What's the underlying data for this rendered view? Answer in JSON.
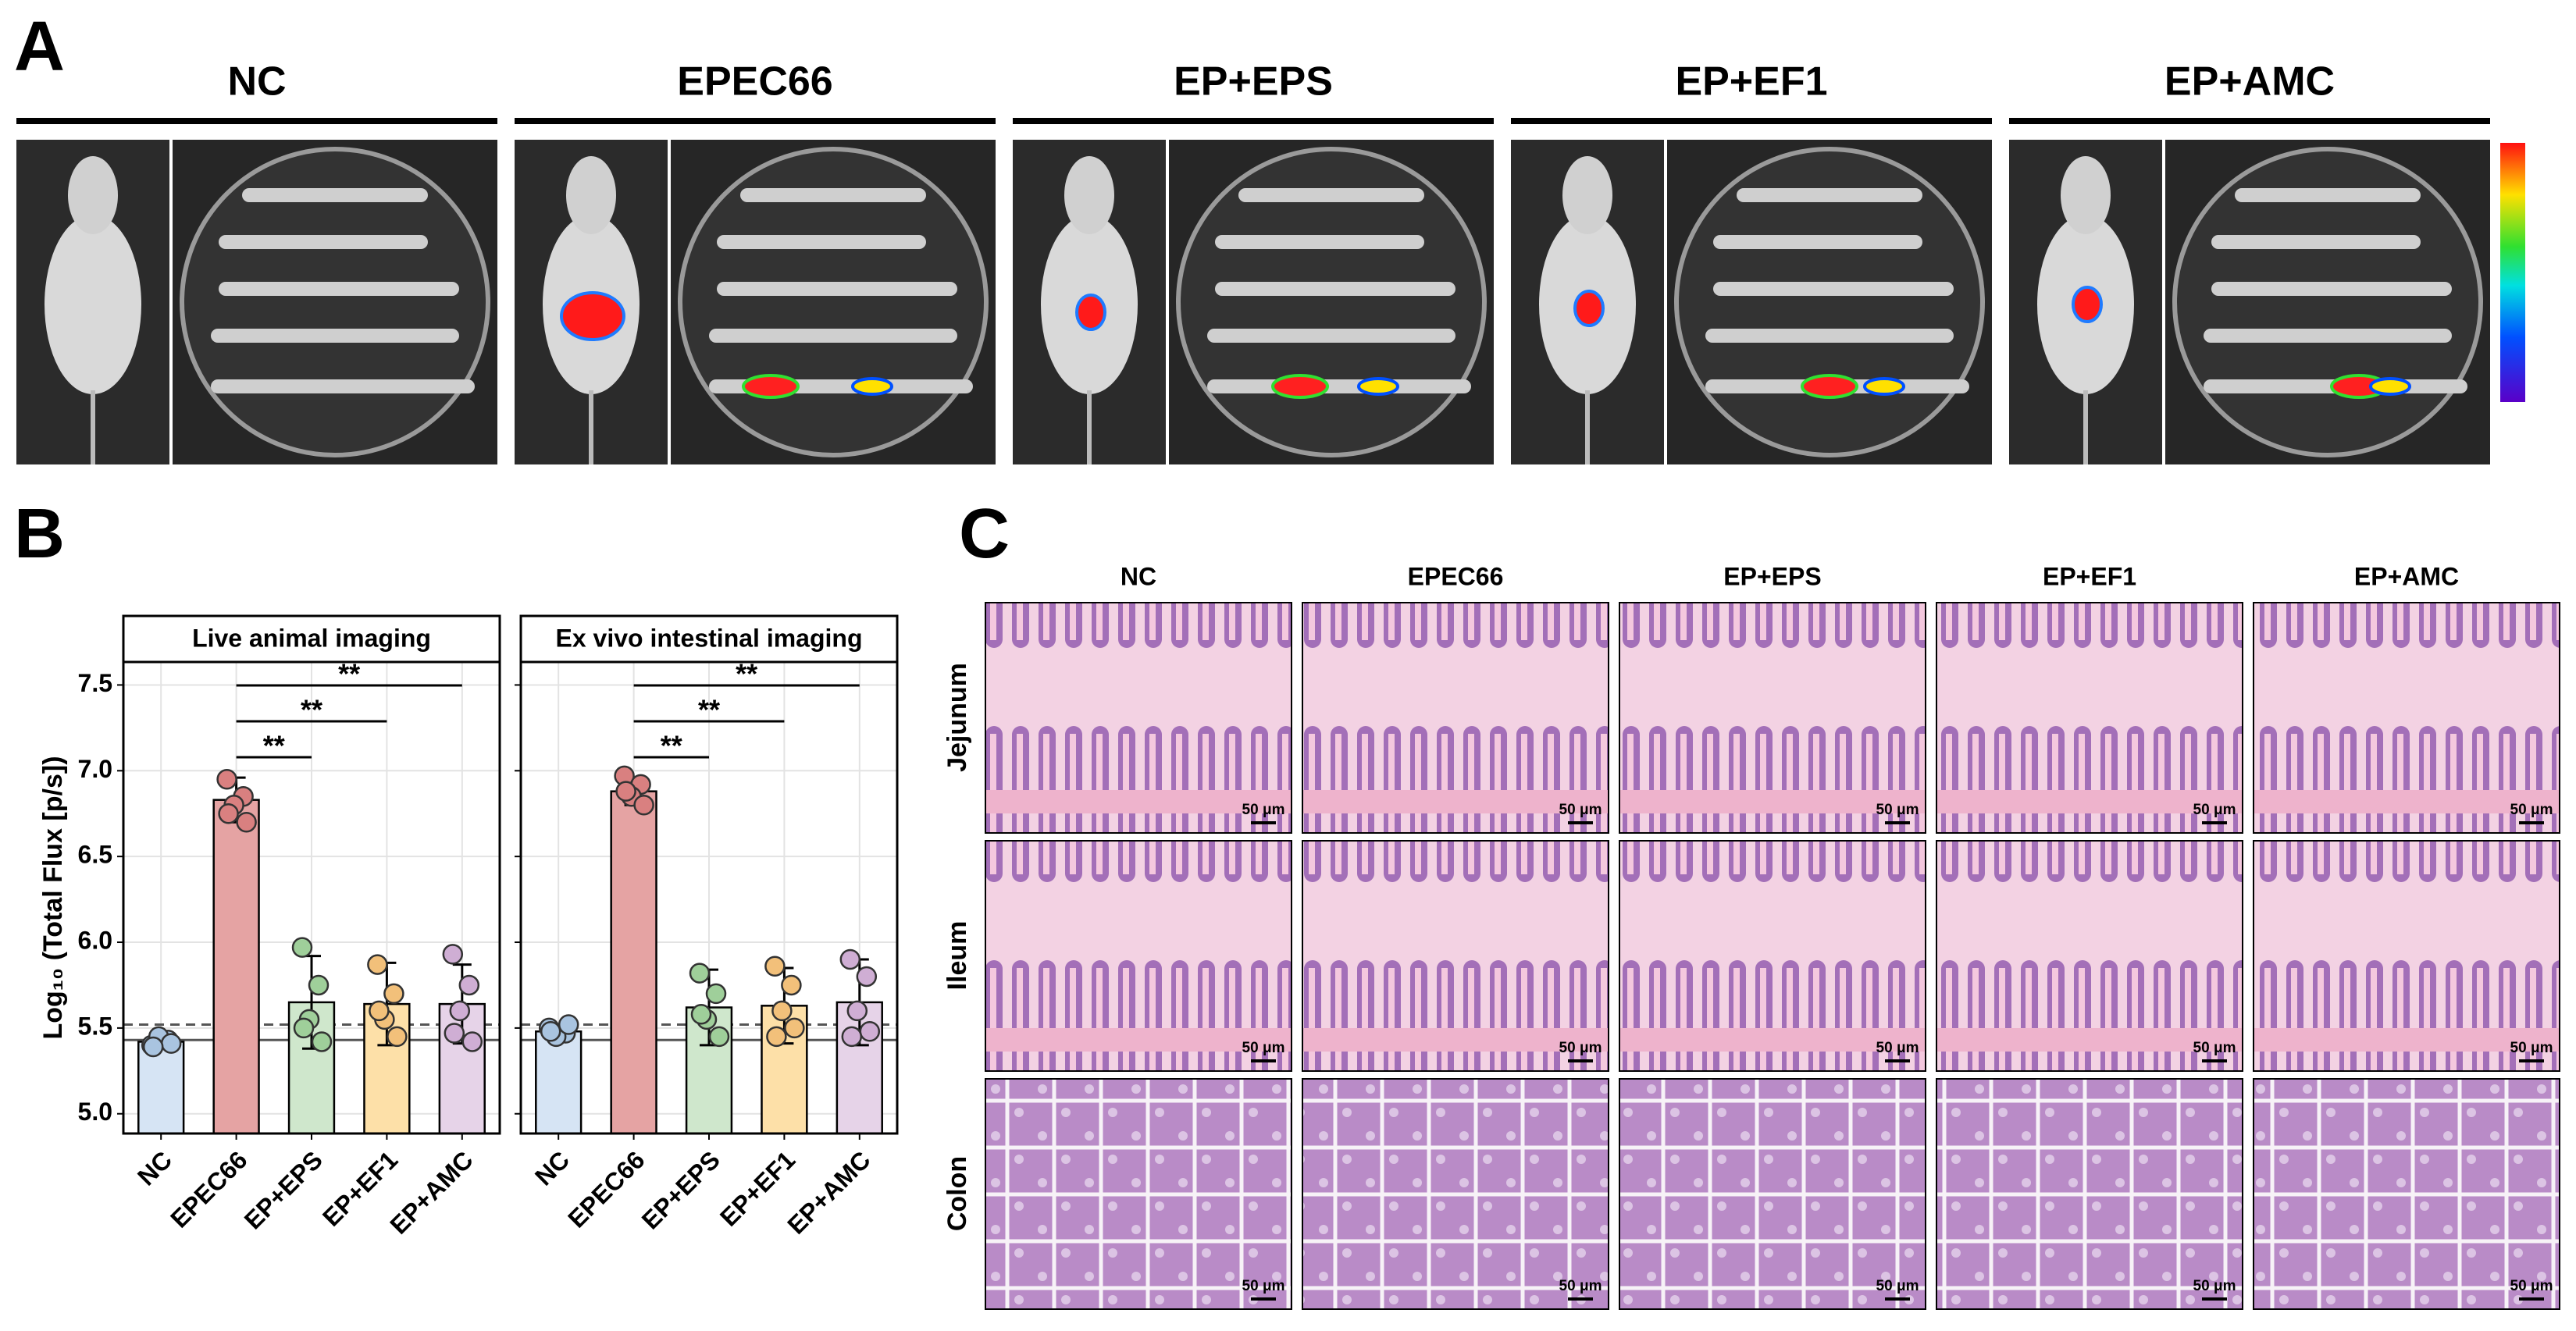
{
  "panel_labels": [
    "A",
    "B",
    "C"
  ],
  "panel_a": {
    "groups": [
      "NC",
      "EPEC66",
      "EP+EPS",
      "EP+EF1",
      "EP+AMC"
    ]
  },
  "chart_data": [
    {
      "type": "bar",
      "title": "Live animal imaging",
      "ylabel": "Log₁₀ (Total Flux [p/s])",
      "categories": [
        "NC",
        "EPEC66",
        "EP+EPS",
        "EP+EF1",
        "EP+AMC"
      ],
      "values": [
        5.42,
        6.83,
        5.65,
        5.64,
        5.64
      ],
      "errors": [
        0.04,
        0.13,
        0.27,
        0.24,
        0.23
      ],
      "points": [
        [
          5.4,
          5.43,
          5.45,
          5.41,
          5.39
        ],
        [
          6.95,
          6.85,
          6.8,
          6.7,
          6.75
        ],
        [
          5.97,
          5.75,
          5.55,
          5.42,
          5.5
        ],
        [
          5.87,
          5.7,
          5.55,
          5.45,
          5.6
        ],
        [
          5.93,
          5.75,
          5.6,
          5.42,
          5.47
        ]
      ],
      "colors": [
        "#d6e4f4",
        "#e5a3a3",
        "#cfe7cc",
        "#fde0a8",
        "#e6d3e8"
      ],
      "point_colors": [
        "#a9c4e0",
        "#d98080",
        "#9fcf9a",
        "#f2c07a",
        "#cfaed4"
      ],
      "ylim": [
        4.885,
        7.634
      ],
      "yticks": [
        {
          "value": 5.0,
          "label": "5.0"
        },
        5.5,
        {
          "value": 6.0,
          "label": "6.0"
        },
        6.5,
        {
          "value": 7.0,
          "label": "7.0"
        },
        7.5
      ],
      "reference_lines": [
        {
          "value": 5.52,
          "style": "dashed"
        },
        {
          "value": 5.43,
          "style": "solid"
        }
      ],
      "comparisons": [
        {
          "groups": [
            "EPEC66",
            "EP+EPS"
          ],
          "label": "**"
        },
        {
          "groups": [
            "EPEC66",
            "EP+EF1"
          ],
          "label": "**"
        },
        {
          "groups": [
            "EPEC66",
            "EP+AMC"
          ],
          "label": "**"
        }
      ],
      "grid": true
    },
    {
      "type": "bar",
      "title": "Ex vivo intestinal imaging",
      "categories": [
        "NC",
        "EPEC66",
        "EP+EPS",
        "EP+EF1",
        "EP+AMC"
      ],
      "values": [
        5.48,
        6.88,
        5.62,
        5.63,
        5.65
      ],
      "errors": [
        0.04,
        0.08,
        0.22,
        0.22,
        0.25
      ],
      "points": [
        [
          5.5,
          5.47,
          5.45,
          5.52,
          5.48
        ],
        [
          6.97,
          6.92,
          6.85,
          6.8,
          6.88
        ],
        [
          5.82,
          5.7,
          5.55,
          5.45,
          5.58
        ],
        [
          5.86,
          5.75,
          5.6,
          5.5,
          5.45
        ],
        [
          5.9,
          5.8,
          5.6,
          5.48,
          5.45
        ]
      ],
      "colors": [
        "#d6e4f4",
        "#e5a3a3",
        "#cfe7cc",
        "#fde0a8",
        "#e6d3e8"
      ],
      "point_colors": [
        "#a9c4e0",
        "#d98080",
        "#9fcf9a",
        "#f2c07a",
        "#cfaed4"
      ],
      "ylim": [
        4.885,
        7.634
      ],
      "yticks": [
        {
          "value": 5.0,
          "label": "5.0"
        },
        5.5,
        {
          "value": 6.0,
          "label": "6.0"
        },
        6.5,
        {
          "value": 7.0,
          "label": "7.0"
        },
        7.5
      ],
      "reference_lines": [
        {
          "value": 5.52,
          "style": "dashed"
        },
        {
          "value": 5.43,
          "style": "solid"
        }
      ],
      "comparisons": [
        {
          "groups": [
            "EPEC66",
            "EP+EPS"
          ],
          "label": "**"
        },
        {
          "groups": [
            "EPEC66",
            "EP+EF1"
          ],
          "label": "**"
        },
        {
          "groups": [
            "EPEC66",
            "EP+AMC"
          ],
          "label": "**"
        }
      ],
      "grid": true
    }
  ],
  "panel_c": {
    "columns": [
      "NC",
      "EPEC66",
      "EP+EPS",
      "EP+EF1",
      "EP+AMC"
    ],
    "rows": [
      "Jejunum",
      "Ileum",
      "Colon"
    ],
    "scale_bar": "50 μm"
  }
}
